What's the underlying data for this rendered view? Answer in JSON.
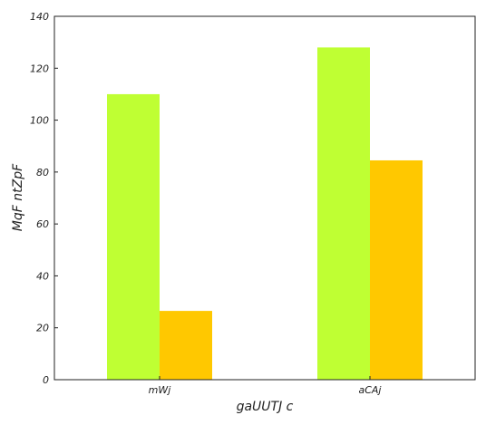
{
  "chart_data": {
    "type": "bar",
    "title": "",
    "xlabel": "gaUUTJ c",
    "ylabel": "MqF ntZpF",
    "categories": [
      "mWj",
      "aCAj"
    ],
    "series": [
      {
        "values": [
          110,
          128
        ],
        "color": "#bfff33"
      },
      {
        "values": [
          26.5,
          84.5
        ],
        "color": "#ffc800"
      }
    ],
    "ylim": [
      0,
      140
    ],
    "yticks": [
      0,
      20,
      40,
      60,
      80,
      100,
      120,
      140
    ],
    "grid": false,
    "legend": "none"
  }
}
